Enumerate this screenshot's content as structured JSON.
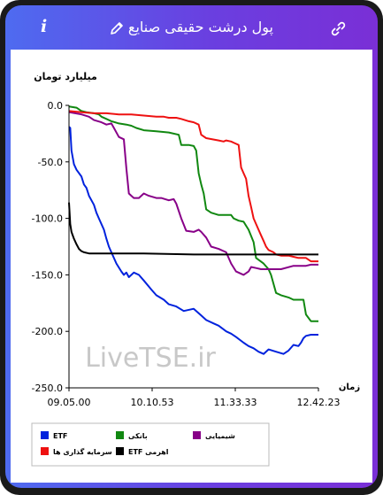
{
  "header": {
    "title": "پول درشت حقیقی صنایع",
    "info_icon": "info-icon",
    "edit_icon": "pencil-icon",
    "link_icon": "link-icon"
  },
  "chart_data": {
    "type": "line",
    "title": "",
    "ylabel": "میلیارد تومان",
    "xlabel": "زمان",
    "ylim": [
      -250,
      0
    ],
    "yticks": [
      0,
      -50,
      -100,
      -150,
      -200,
      -250
    ],
    "ytick_labels": [
      "0.0",
      "-50.0",
      "-100.0",
      "-150.0",
      "-200.0",
      "-250.0"
    ],
    "xticks": [
      "09.05.00",
      "10.10.53",
      "11.33.33",
      "12.42.23"
    ],
    "watermark": "LiveTSE.ir",
    "legend_position": "bottom",
    "series": [
      {
        "name": "ETF",
        "color": "#0022dd",
        "x": [
          0,
          0.5,
          1,
          2,
          3,
          5,
          6,
          7,
          8,
          10,
          11,
          12,
          14,
          15,
          16,
          17,
          19,
          21,
          22,
          23,
          24,
          26,
          28,
          30,
          33,
          35,
          38,
          40,
          43,
          46,
          50,
          53,
          55,
          58,
          60,
          63,
          65,
          67,
          70,
          72,
          74,
          76,
          78,
          80,
          83,
          86,
          88,
          90,
          92,
          93,
          94,
          95,
          97,
          99,
          100
        ],
        "y": [
          -19,
          -20,
          -40,
          -52,
          -57,
          -63,
          -70,
          -73,
          -80,
          -88,
          -95,
          -100,
          -110,
          -118,
          -125,
          -130,
          -140,
          -147,
          -150,
          -148,
          -152,
          -148,
          -150,
          -155,
          -163,
          -168,
          -172,
          -176,
          -178,
          -182,
          -180,
          -186,
          -190,
          -193,
          -195,
          -200,
          -202,
          -205,
          -210,
          -213,
          -215,
          -218,
          -220,
          -216,
          -218,
          -220,
          -217,
          -212,
          -213,
          -210,
          -206,
          -204,
          -203,
          -203,
          -203
        ]
      },
      {
        "name": "بانکی",
        "color": "#118811",
        "x": [
          0,
          3,
          5,
          7,
          10,
          12,
          13,
          15,
          17,
          20,
          23,
          25,
          27,
          30,
          35,
          40,
          44,
          45,
          48,
          50,
          51,
          52,
          53,
          54,
          55,
          57,
          60,
          63,
          65,
          66,
          68,
          70,
          72,
          74,
          75,
          78,
          80,
          81,
          83,
          85,
          88,
          90,
          92,
          94,
          95,
          97,
          100
        ],
        "y": [
          -1,
          -2,
          -5,
          -6,
          -7,
          -8,
          -10,
          -12,
          -14,
          -16,
          -17,
          -18,
          -20,
          -22,
          -23,
          -24,
          -26,
          -35,
          -35,
          -36,
          -40,
          -60,
          -70,
          -78,
          -92,
          -95,
          -97,
          -97,
          -97,
          -100,
          -102,
          -103,
          -110,
          -121,
          -135,
          -140,
          -145,
          -150,
          -166,
          -168,
          -170,
          -172,
          -172,
          -172,
          -185,
          -191,
          -191
        ]
      },
      {
        "name": "شیمیایی",
        "color": "#880088",
        "x": [
          0,
          5,
          8,
          10,
          13,
          15,
          17,
          18,
          20,
          22,
          23,
          24,
          25,
          26,
          28,
          30,
          32,
          35,
          37,
          40,
          42,
          43,
          45,
          47,
          50,
          52,
          53,
          55,
          57,
          60,
          63,
          65,
          67,
          70,
          72,
          73,
          75,
          77,
          80,
          85,
          90,
          95,
          97,
          100
        ],
        "y": [
          -6,
          -8,
          -10,
          -13,
          -15,
          -17,
          -16,
          -20,
          -28,
          -30,
          -56,
          -78,
          -80,
          -82,
          -82,
          -78,
          -80,
          -82,
          -82,
          -84,
          -83,
          -87,
          -100,
          -111,
          -112,
          -110,
          -112,
          -117,
          -125,
          -127,
          -130,
          -140,
          -147,
          -150,
          -147,
          -143,
          -144,
          -145,
          -145,
          -145,
          -142,
          -142,
          -141,
          -141
        ]
      },
      {
        "name": "سرمایه گذاری ها",
        "color": "#ee1111",
        "x": [
          0,
          5,
          10,
          15,
          20,
          25,
          30,
          35,
          38,
          40,
          43,
          45,
          48,
          50,
          52,
          53,
          55,
          60,
          62,
          63,
          65,
          66,
          67,
          68,
          69,
          70,
          71,
          72,
          73,
          74,
          75,
          76,
          77,
          78,
          79,
          80,
          82,
          83,
          85,
          88,
          90,
          92,
          95,
          97,
          100
        ],
        "y": [
          -5,
          -6,
          -7,
          -7,
          -8,
          -8,
          -9,
          -10,
          -10,
          -11,
          -11,
          -12,
          -14,
          -15,
          -17,
          -26,
          -29,
          -31,
          -32,
          -31,
          -32,
          -33,
          -34,
          -35,
          -55,
          -60,
          -65,
          -80,
          -90,
          -100,
          -105,
          -110,
          -115,
          -120,
          -125,
          -128,
          -130,
          -132,
          -133,
          -133,
          -134,
          -135,
          -135,
          -138,
          -138
        ]
      },
      {
        "name": "ETF اهرمی",
        "color": "#000000",
        "x": [
          0,
          0.5,
          1,
          2,
          3,
          4,
          5,
          6,
          8,
          10,
          15,
          20,
          30,
          50,
          70,
          90,
          100
        ],
        "y": [
          -86,
          -105,
          -112,
          -118,
          -123,
          -127,
          -129,
          -130,
          -131,
          -131,
          -131,
          -131,
          -131,
          -132,
          -132,
          -132,
          -132
        ]
      }
    ]
  }
}
